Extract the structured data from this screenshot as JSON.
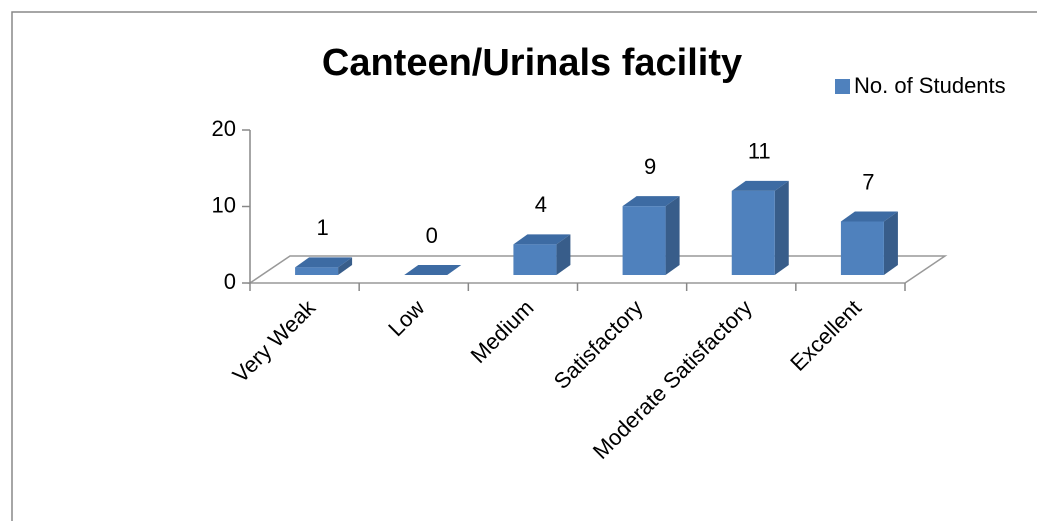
{
  "chart_data": {
    "type": "bar",
    "title": "Canteen/Urinals facility",
    "categories": [
      "Very Weak",
      "Low",
      "Medium",
      "Satisfactory",
      "Moderate Satisfactory",
      "Excellent"
    ],
    "series": [
      {
        "name": "No. of Students",
        "color": "#4f81bd",
        "values": [
          1,
          0,
          4,
          9,
          11,
          7
        ]
      }
    ],
    "ylim": [
      0,
      20
    ],
    "yticks": [
      0,
      10,
      20
    ],
    "legend": "right",
    "grid": false
  }
}
